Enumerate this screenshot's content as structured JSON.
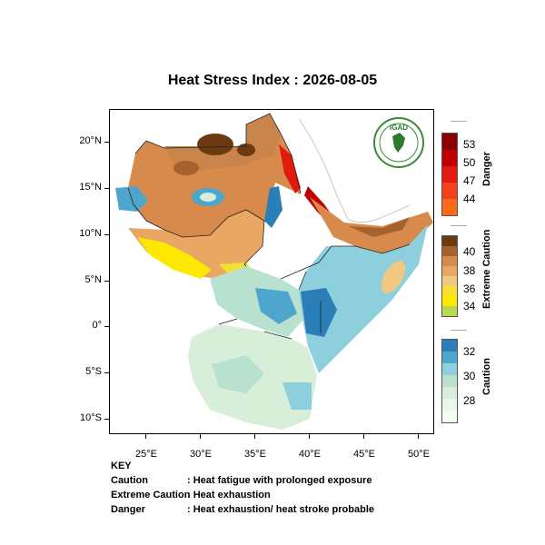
{
  "title": "Heat Stress Index : 2026-08-05",
  "map": {
    "lat_ticks": [
      "20°N",
      "15°N",
      "10°N",
      "5°N",
      "0°",
      "5°S",
      "10°S"
    ],
    "lon_ticks": [
      "25°E",
      "30°E",
      "35°E",
      "40°E",
      "45°E",
      "50°E"
    ],
    "logo_text": "IGAD"
  },
  "legend": {
    "danger": {
      "title": "Danger",
      "labels": [
        "53",
        "50",
        "47",
        "44"
      ]
    },
    "extreme_caution": {
      "title": "Extreme Caution",
      "labels": [
        "40",
        "38",
        "36",
        "34"
      ]
    },
    "caution": {
      "title": "Caution",
      "labels": [
        "32",
        "30",
        "28"
      ]
    }
  },
  "key": {
    "heading": "KEY",
    "rows": [
      {
        "term": "Caution",
        "desc": ": Heat fatigue with prolonged exposure"
      },
      {
        "term": "Extreme Caution",
        "desc": ": Heat exhaustion"
      },
      {
        "term": "Danger",
        "desc": ": Heat exhaustion/ heat stroke probable"
      }
    ]
  },
  "colors": {
    "danger": [
      "#8b0000",
      "#c00000",
      "#e21a0e",
      "#f5401a",
      "#ff6a1a"
    ],
    "extreme": [
      "#6b3a10",
      "#a5622d",
      "#d8894c",
      "#e9a764",
      "#f0c882",
      "#f7e12b",
      "#ffe800",
      "#b9d94e"
    ],
    "caution": [
      "#2a7fb8",
      "#4ea6cf",
      "#8dcfdc",
      "#b8e2cf",
      "#d7efd9",
      "#ebf6ea",
      "#f6fbf4"
    ],
    "border": "#222222"
  }
}
